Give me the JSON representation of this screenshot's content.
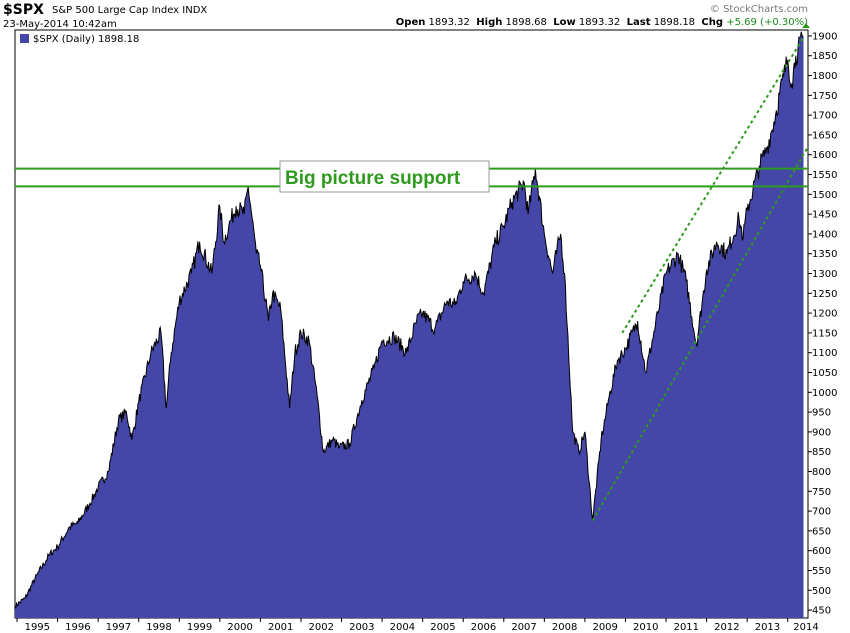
{
  "header": {
    "symbol": "$SPX",
    "description": "S&P 500 Large Cap Index",
    "exchange": "INDX",
    "datetime": "23-May-2014 10:42am",
    "source": "© StockCharts.com",
    "open_label": "Open",
    "open": "1893.32",
    "high_label": "High",
    "high": "1898.68",
    "low_label": "Low",
    "low": "1893.32",
    "last_label": "Last",
    "last": "1898.18",
    "chg_label": "Chg",
    "chg": "+5.69 (+0.30%)"
  },
  "legend": {
    "text": "$SPX (Daily) 1898.18"
  },
  "annotation": {
    "text": "Big picture support"
  },
  "colors": {
    "area": "#4547a8",
    "line": "#000000",
    "support": "#2e9a1e",
    "channel": "#2e9a1e"
  },
  "chart_data": {
    "type": "area",
    "title": "$SPX (Daily) 1898.18",
    "x": [
      1994.95,
      1995.2,
      1995.5,
      1995.8,
      1996.0,
      1996.3,
      1996.5,
      1996.8,
      1997.0,
      1997.25,
      1997.5,
      1997.7,
      1997.83,
      1998.0,
      1998.3,
      1998.55,
      1998.68,
      1998.8,
      1999.0,
      1999.3,
      1999.5,
      1999.8,
      2000.0,
      2000.1,
      2000.22,
      2000.4,
      2000.6,
      2000.7,
      2000.9,
      2001.0,
      2001.2,
      2001.3,
      2001.5,
      2001.72,
      2001.85,
      2002.0,
      2002.2,
      2002.4,
      2002.55,
      2002.78,
      2002.95,
      2003.2,
      2003.5,
      2003.8,
      2004.0,
      2004.3,
      2004.6,
      2004.85,
      2005.0,
      2005.3,
      2005.6,
      2005.8,
      2006.0,
      2006.3,
      2006.5,
      2006.8,
      2007.0,
      2007.2,
      2007.5,
      2007.6,
      2007.78,
      2008.0,
      2008.2,
      2008.4,
      2008.5,
      2008.7,
      2008.85,
      2009.0,
      2009.19,
      2009.4,
      2009.6,
      2009.8,
      2010.0,
      2010.3,
      2010.5,
      2010.8,
      2011.0,
      2011.3,
      2011.5,
      2011.75,
      2012.0,
      2012.25,
      2012.5,
      2012.8,
      2012.9,
      2013.0,
      2013.3,
      2013.5,
      2013.7,
      2013.9,
      2014.0,
      2014.1,
      2014.2,
      2014.39
    ],
    "values": [
      460,
      480,
      540,
      590,
      610,
      660,
      670,
      720,
      760,
      800,
      930,
      950,
      880,
      975,
      1100,
      1150,
      960,
      1100,
      1230,
      1300,
      1380,
      1300,
      1469,
      1380,
      1420,
      1470,
      1450,
      1520,
      1350,
      1320,
      1180,
      1250,
      1210,
      960,
      1100,
      1150,
      1130,
      990,
      850,
      880,
      860,
      870,
      980,
      1060,
      1130,
      1140,
      1100,
      1180,
      1200,
      1160,
      1230,
      1220,
      1280,
      1300,
      1250,
      1380,
      1420,
      1480,
      1530,
      1450,
      1565,
      1400,
      1300,
      1400,
      1300,
      900,
      850,
      900,
      676,
      880,
      990,
      1080,
      1110,
      1180,
      1050,
      1200,
      1300,
      1350,
      1280,
      1120,
      1310,
      1380,
      1350,
      1440,
      1390,
      1460,
      1570,
      1620,
      1700,
      1800,
      1840,
      1780,
      1850,
      1898
    ],
    "xlabel": "",
    "ylabel": "",
    "xlim": [
      1994.95,
      2014.5
    ],
    "ylim": [
      430,
      1915
    ],
    "x_ticks": [
      "1995",
      "1996",
      "1997",
      "1998",
      "1999",
      "2000",
      "2001",
      "2002",
      "2003",
      "2004",
      "2005",
      "2006",
      "2007",
      "2008",
      "2009",
      "2010",
      "2011",
      "2012",
      "2013",
      "2014"
    ],
    "y_ticks": [
      450,
      500,
      550,
      600,
      650,
      700,
      750,
      800,
      850,
      900,
      950,
      1000,
      1050,
      1100,
      1150,
      1200,
      1250,
      1300,
      1350,
      1400,
      1450,
      1500,
      1550,
      1600,
      1650,
      1700,
      1750,
      1800,
      1850,
      1900
    ],
    "support_levels": [
      1520,
      1565
    ],
    "channel_lower": {
      "start": [
        2009.19,
        676
      ],
      "end": [
        2014.5,
        1620
      ]
    },
    "channel_upper": {
      "start": [
        2009.92,
        1150
      ],
      "end": [
        2014.37,
        1893
      ]
    },
    "grid": false,
    "legend_position": "top-left"
  }
}
